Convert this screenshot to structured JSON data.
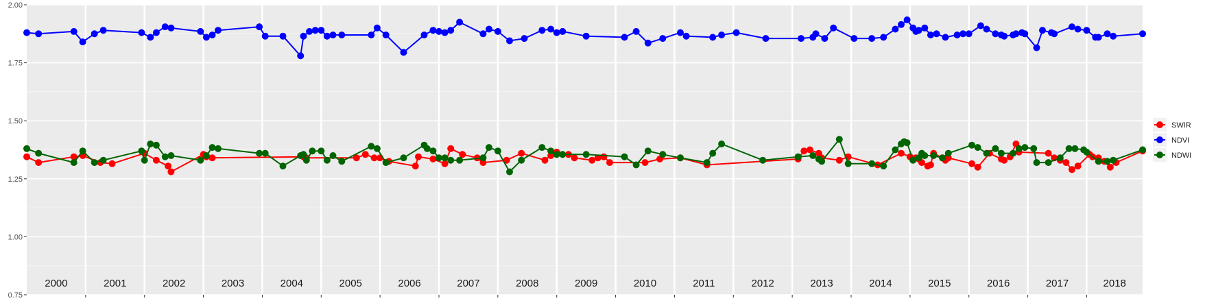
{
  "chart_data": {
    "type": "line",
    "title": "",
    "xlabel": "",
    "ylabel": "",
    "ylim": [
      0.75,
      2.0
    ],
    "y_ticks": [
      "0.75",
      "1.00",
      "1.25",
      "1.50",
      "1.75",
      "2.00"
    ],
    "xlim": [
      2000.0,
      2018.95
    ],
    "x_tick_labels": [
      "2000",
      "2001",
      "2002",
      "2003",
      "2004",
      "2005",
      "2006",
      "2007",
      "2008",
      "2009",
      "2010",
      "2011",
      "2012",
      "2013",
      "2014",
      "2015",
      "2016",
      "2017",
      "2018"
    ],
    "grid": true,
    "legend_position": "right",
    "series": [
      {
        "name": "SWIR",
        "color": "#ff0000",
        "x": [
          2000.0,
          2000.2,
          2000.8,
          2000.95,
          2001.25,
          2001.45,
          2002.0,
          2002.2,
          2002.4,
          2002.45,
          2003.0,
          2003.05,
          2003.15,
          2004.7,
          2004.75,
          2005.6,
          2005.75,
          2005.9,
          2006.0,
          2006.15,
          2006.6,
          2006.65,
          2006.9,
          2007.1,
          2007.2,
          2007.4,
          2007.65,
          2007.75,
          2008.15,
          2008.4,
          2008.8,
          2008.9,
          2009.0,
          2009.2,
          2009.3,
          2009.6,
          2009.7,
          2009.8,
          2009.9,
          2010.5,
          2010.75,
          2011.1,
          2011.55,
          2013.1,
          2013.2,
          2013.3,
          2013.45,
          2013.5,
          2013.8,
          2013.95,
          2014.45,
          2014.85,
          2015.0,
          2015.1,
          2015.15,
          2015.2,
          2015.3,
          2015.35,
          2015.4,
          2015.55,
          2015.6,
          2015.65,
          2016.05,
          2016.15,
          2016.35,
          2016.55,
          2016.6,
          2016.7,
          2016.8,
          2016.85,
          2017.35,
          2017.45,
          2017.55,
          2017.65,
          2017.75,
          2017.85,
          2018.05,
          2018.1,
          2018.2,
          2018.3,
          2018.4,
          2018.5,
          2018.95
        ],
        "y": [
          1.345,
          1.32,
          1.345,
          1.35,
          1.32,
          1.315,
          1.36,
          1.33,
          1.305,
          1.28,
          1.355,
          1.345,
          1.34,
          1.345,
          1.34,
          1.34,
          1.355,
          1.34,
          1.34,
          1.325,
          1.305,
          1.345,
          1.335,
          1.315,
          1.38,
          1.355,
          1.34,
          1.32,
          1.33,
          1.36,
          1.33,
          1.35,
          1.365,
          1.355,
          1.34,
          1.33,
          1.34,
          1.345,
          1.32,
          1.32,
          1.335,
          1.34,
          1.31,
          1.335,
          1.37,
          1.375,
          1.36,
          1.34,
          1.33,
          1.345,
          1.31,
          1.36,
          1.345,
          1.34,
          1.335,
          1.32,
          1.305,
          1.31,
          1.36,
          1.34,
          1.33,
          1.34,
          1.315,
          1.3,
          1.36,
          1.335,
          1.33,
          1.345,
          1.4,
          1.365,
          1.36,
          1.34,
          1.33,
          1.32,
          1.29,
          1.305,
          1.355,
          1.345,
          1.34,
          1.325,
          1.3,
          1.32,
          1.37
        ]
      },
      {
        "name": "NDVI",
        "color": "#0000ff",
        "x": [
          2000.0,
          2000.2,
          2000.8,
          2000.95,
          2001.15,
          2001.3,
          2001.95,
          2002.1,
          2002.2,
          2002.35,
          2002.45,
          2002.95,
          2003.05,
          2003.15,
          2003.25,
          2003.95,
          2004.05,
          2004.35,
          2004.65,
          2004.7,
          2004.8,
          2004.9,
          2005.0,
          2005.1,
          2005.2,
          2005.35,
          2005.85,
          2005.95,
          2006.1,
          2006.4,
          2006.75,
          2006.9,
          2007.0,
          2007.1,
          2007.2,
          2007.35,
          2007.75,
          2007.85,
          2008.0,
          2008.2,
          2008.45,
          2008.75,
          2008.9,
          2009.0,
          2009.1,
          2009.5,
          2010.15,
          2010.35,
          2010.55,
          2010.8,
          2011.1,
          2011.2,
          2011.65,
          2011.8,
          2012.05,
          2012.55,
          2013.15,
          2013.35,
          2013.4,
          2013.55,
          2013.7,
          2014.05,
          2014.35,
          2014.55,
          2014.75,
          2014.85,
          2014.95,
          2015.05,
          2015.1,
          2015.15,
          2015.25,
          2015.35,
          2015.45,
          2015.6,
          2015.8,
          2015.9,
          2016.0,
          2016.2,
          2016.3,
          2016.45,
          2016.55,
          2016.6,
          2016.75,
          2016.8,
          2016.9,
          2016.95,
          2017.15,
          2017.25,
          2017.4,
          2017.45,
          2017.75,
          2017.85,
          2018.0,
          2018.15,
          2018.2,
          2018.35,
          2018.45,
          2018.95
        ],
        "y": [
          1.88,
          1.875,
          1.885,
          1.84,
          1.875,
          1.89,
          1.88,
          1.86,
          1.88,
          1.905,
          1.9,
          1.885,
          1.86,
          1.87,
          1.89,
          1.905,
          1.865,
          1.865,
          1.78,
          1.865,
          1.885,
          1.89,
          1.89,
          1.865,
          1.87,
          1.87,
          1.87,
          1.9,
          1.87,
          1.795,
          1.87,
          1.89,
          1.885,
          1.88,
          1.89,
          1.925,
          1.875,
          1.895,
          1.885,
          1.845,
          1.855,
          1.89,
          1.895,
          1.88,
          1.885,
          1.865,
          1.86,
          1.885,
          1.835,
          1.855,
          1.88,
          1.865,
          1.86,
          1.87,
          1.88,
          1.855,
          1.855,
          1.86,
          1.875,
          1.855,
          1.9,
          1.855,
          1.855,
          1.86,
          1.895,
          1.915,
          1.935,
          1.9,
          1.885,
          1.89,
          1.9,
          1.87,
          1.875,
          1.86,
          1.87,
          1.875,
          1.875,
          1.91,
          1.895,
          1.875,
          1.87,
          1.865,
          1.87,
          1.875,
          1.88,
          1.875,
          1.815,
          1.89,
          1.88,
          1.875,
          1.905,
          1.895,
          1.89,
          1.86,
          1.86,
          1.875,
          1.865,
          1.875
        ]
      },
      {
        "name": "NDWI",
        "color": "#006400",
        "x": [
          2000.0,
          2000.2,
          2000.8,
          2000.95,
          2001.15,
          2001.3,
          2001.95,
          2002.0,
          2002.1,
          2002.2,
          2002.35,
          2002.45,
          2002.95,
          2003.05,
          2003.15,
          2003.25,
          2003.95,
          2004.05,
          2004.35,
          2004.65,
          2004.7,
          2004.75,
          2004.85,
          2005.0,
          2005.1,
          2005.2,
          2005.35,
          2005.85,
          2005.95,
          2006.1,
          2006.4,
          2006.75,
          2006.8,
          2006.9,
          2007.0,
          2007.1,
          2007.2,
          2007.35,
          2007.75,
          2007.85,
          2008.0,
          2008.2,
          2008.4,
          2008.75,
          2008.9,
          2009.0,
          2009.1,
          2009.5,
          2010.15,
          2010.35,
          2010.55,
          2010.8,
          2011.1,
          2011.55,
          2011.65,
          2011.8,
          2012.5,
          2013.1,
          2013.35,
          2013.45,
          2013.5,
          2013.8,
          2013.95,
          2014.35,
          2014.55,
          2014.75,
          2014.85,
          2014.9,
          2014.95,
          2015.05,
          2015.15,
          2015.2,
          2015.25,
          2015.4,
          2015.55,
          2015.65,
          2016.05,
          2016.15,
          2016.3,
          2016.45,
          2016.55,
          2016.75,
          2016.85,
          2016.95,
          2017.1,
          2017.15,
          2017.35,
          2017.55,
          2017.7,
          2017.8,
          2017.95,
          2018.0,
          2018.2,
          2018.35,
          2018.45,
          2018.95
        ],
        "y": [
          1.38,
          1.36,
          1.32,
          1.37,
          1.32,
          1.33,
          1.37,
          1.33,
          1.4,
          1.395,
          1.345,
          1.35,
          1.33,
          1.35,
          1.385,
          1.38,
          1.36,
          1.36,
          1.305,
          1.35,
          1.355,
          1.33,
          1.37,
          1.37,
          1.33,
          1.35,
          1.325,
          1.39,
          1.38,
          1.32,
          1.34,
          1.395,
          1.38,
          1.37,
          1.34,
          1.34,
          1.33,
          1.33,
          1.34,
          1.385,
          1.37,
          1.28,
          1.33,
          1.385,
          1.37,
          1.355,
          1.355,
          1.355,
          1.345,
          1.31,
          1.37,
          1.355,
          1.34,
          1.32,
          1.36,
          1.4,
          1.33,
          1.345,
          1.35,
          1.335,
          1.325,
          1.42,
          1.315,
          1.315,
          1.305,
          1.375,
          1.4,
          1.41,
          1.405,
          1.33,
          1.34,
          1.36,
          1.35,
          1.35,
          1.34,
          1.36,
          1.395,
          1.385,
          1.36,
          1.38,
          1.36,
          1.36,
          1.38,
          1.385,
          1.38,
          1.32,
          1.32,
          1.34,
          1.38,
          1.38,
          1.375,
          1.365,
          1.325,
          1.325,
          1.33,
          1.375
        ]
      }
    ]
  }
}
